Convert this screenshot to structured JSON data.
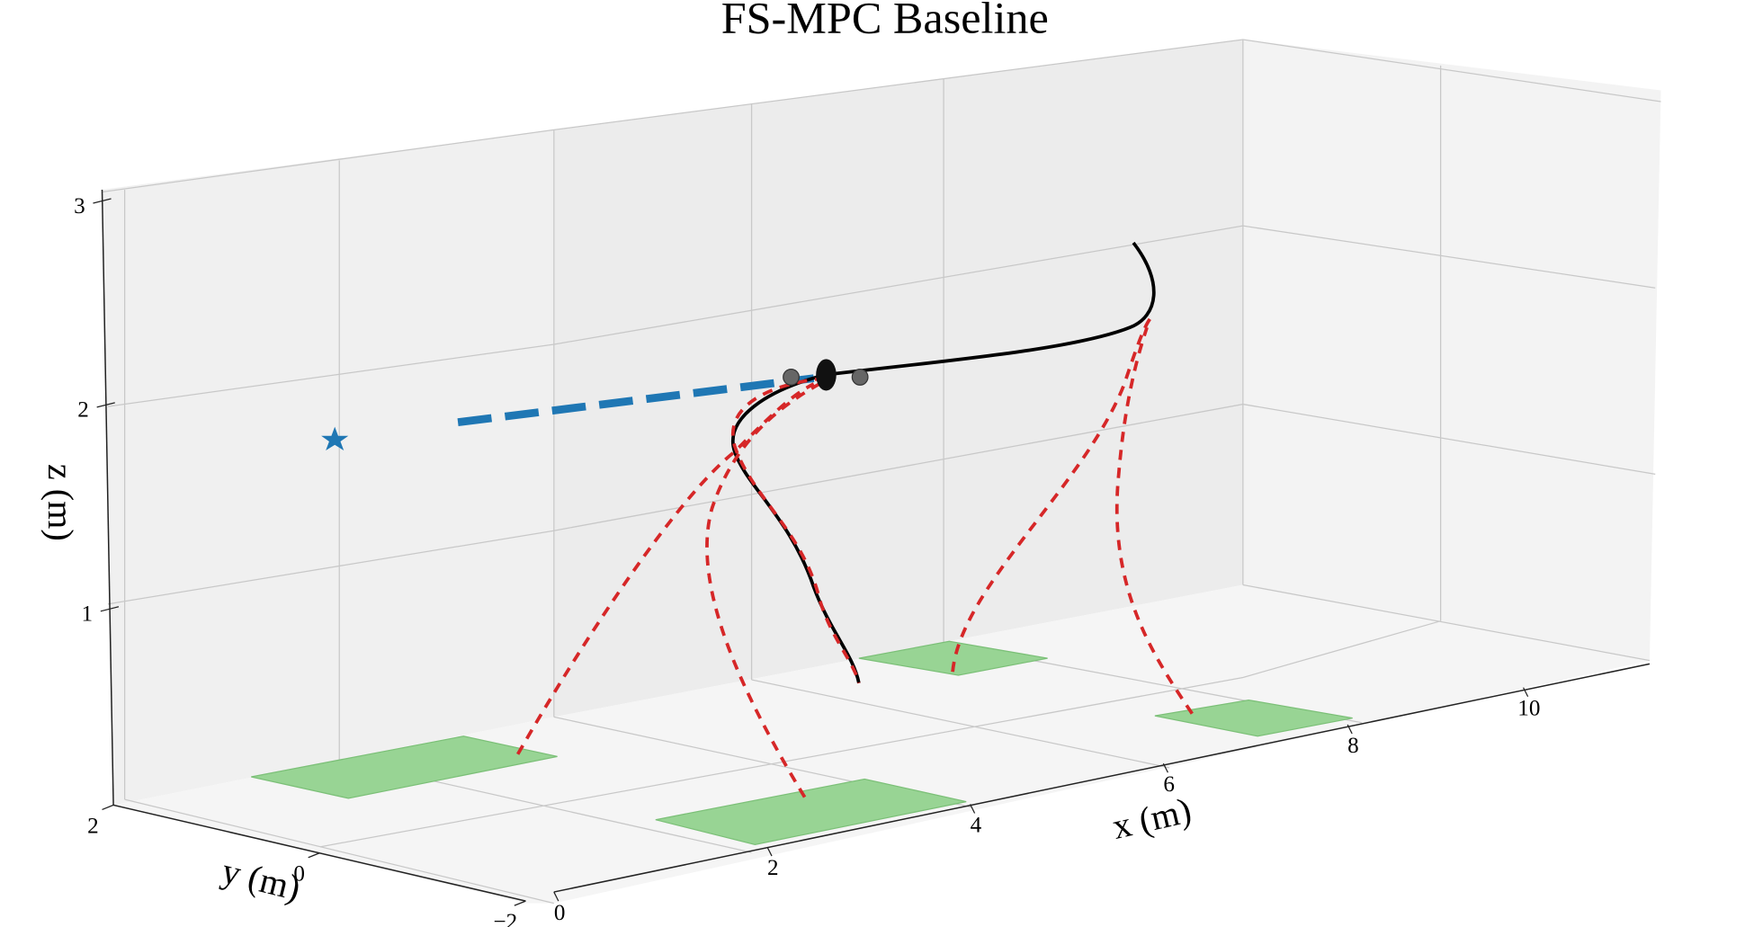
{
  "chart_data": {
    "type": "line3d",
    "title": "FS-MPC Baseline",
    "x_label": "x (m)",
    "y_label": "y (m)",
    "z_label": "z (m)",
    "xlim": [
      0,
      11
    ],
    "xticks": [
      0,
      2,
      4,
      6,
      8,
      10
    ],
    "ylim": [
      -2,
      2
    ],
    "yticks": [
      2,
      0,
      {
        "value": -2,
        "label": "−2"
      }
    ],
    "zlim": [
      0,
      3
    ],
    "zticks": [
      1,
      2,
      3
    ]
  }
}
